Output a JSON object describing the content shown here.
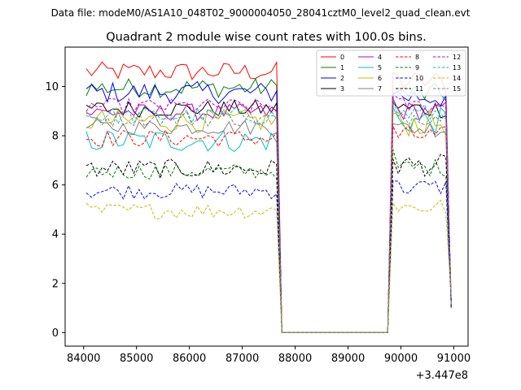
{
  "chart_data": {
    "type": "line",
    "suptitle": "Data file: modeM0/AS1A10_048T02_9000004050_28041cztM0_level2_quad_clean.evt",
    "title": "Quadrant 2 module wise count rates with 100.0s bins.",
    "xlabel": "",
    "ylabel": "",
    "x_offset_label": "+3.447e8",
    "x_offset": 344700000,
    "xlim": [
      83650,
      91270
    ],
    "ylim": [
      -0.55,
      11.6
    ],
    "xticks": [
      84000,
      85000,
      86000,
      87000,
      88000,
      89000,
      90000,
      91000
    ],
    "xtick_labels": [
      "84000",
      "85000",
      "86000",
      "87000",
      "88000",
      "89000",
      "90000",
      "91000"
    ],
    "yticks": [
      0,
      2,
      4,
      6,
      8,
      10
    ],
    "ytick_labels": [
      "0",
      "2",
      "4",
      "6",
      "8",
      "10"
    ],
    "legend_position": "top-right",
    "gap": {
      "start": 87750,
      "end": 89750,
      "value": 0
    },
    "segment1": {
      "start": 84050,
      "end": 87650,
      "step": 100
    },
    "segment2": {
      "start": 89850,
      "end": 90950,
      "step": 100
    },
    "series": [
      {
        "name": "0",
        "color": "#ff0000",
        "dash": "solid",
        "level": 10.6,
        "level2": 10.2,
        "amp": 0.25
      },
      {
        "name": "1",
        "color": "#008000",
        "dash": "solid",
        "level": 9.95,
        "level2": 9.7,
        "amp": 0.25
      },
      {
        "name": "2",
        "color": "#0000ff",
        "dash": "solid",
        "level": 9.75,
        "level2": 9.6,
        "amp": 0.28
      },
      {
        "name": "3",
        "color": "#000000",
        "dash": "solid",
        "level": 9.1,
        "level2": 9.1,
        "amp": 0.22
      },
      {
        "name": "4",
        "color": "#bf00bf",
        "dash": "solid",
        "level": 8.95,
        "level2": 9.0,
        "amp": 0.22
      },
      {
        "name": "5",
        "color": "#00bfbf",
        "dash": "solid",
        "level": 7.8,
        "level2": 8.6,
        "amp": 0.3
      },
      {
        "name": "6",
        "color": "#bfbf00",
        "dash": "solid",
        "level": 8.6,
        "level2": 8.5,
        "amp": 0.3
      },
      {
        "name": "7",
        "color": "#808080",
        "dash": "solid",
        "level": 8.35,
        "level2": 8.3,
        "amp": 0.2
      },
      {
        "name": "8",
        "color": "#ff0000",
        "dash": "dashed",
        "level": 7.9,
        "level2": 8.0,
        "amp": 0.22
      },
      {
        "name": "9",
        "color": "#008000",
        "dash": "dashed",
        "level": 6.55,
        "level2": 6.7,
        "amp": 0.2
      },
      {
        "name": "10",
        "color": "#0000ff",
        "dash": "dashed",
        "level": 5.75,
        "level2": 5.9,
        "amp": 0.2
      },
      {
        "name": "11",
        "color": "#000000",
        "dash": "dashed",
        "level": 6.65,
        "level2": 6.8,
        "amp": 0.25
      },
      {
        "name": "12",
        "color": "#bf00bf",
        "dash": "dashed",
        "level": 9.2,
        "level2": 9.2,
        "amp": 0.2
      },
      {
        "name": "13",
        "color": "#00bfbf",
        "dash": "dashed",
        "level": 8.8,
        "level2": 8.9,
        "amp": 0.22
      },
      {
        "name": "14",
        "color": "#bfbf00",
        "dash": "dashed",
        "level": 4.95,
        "level2": 5.1,
        "amp": 0.2
      },
      {
        "name": "15",
        "color": "#808080",
        "dash": "dashed",
        "level": 8.7,
        "level2": 8.8,
        "amp": 0.2
      }
    ]
  }
}
